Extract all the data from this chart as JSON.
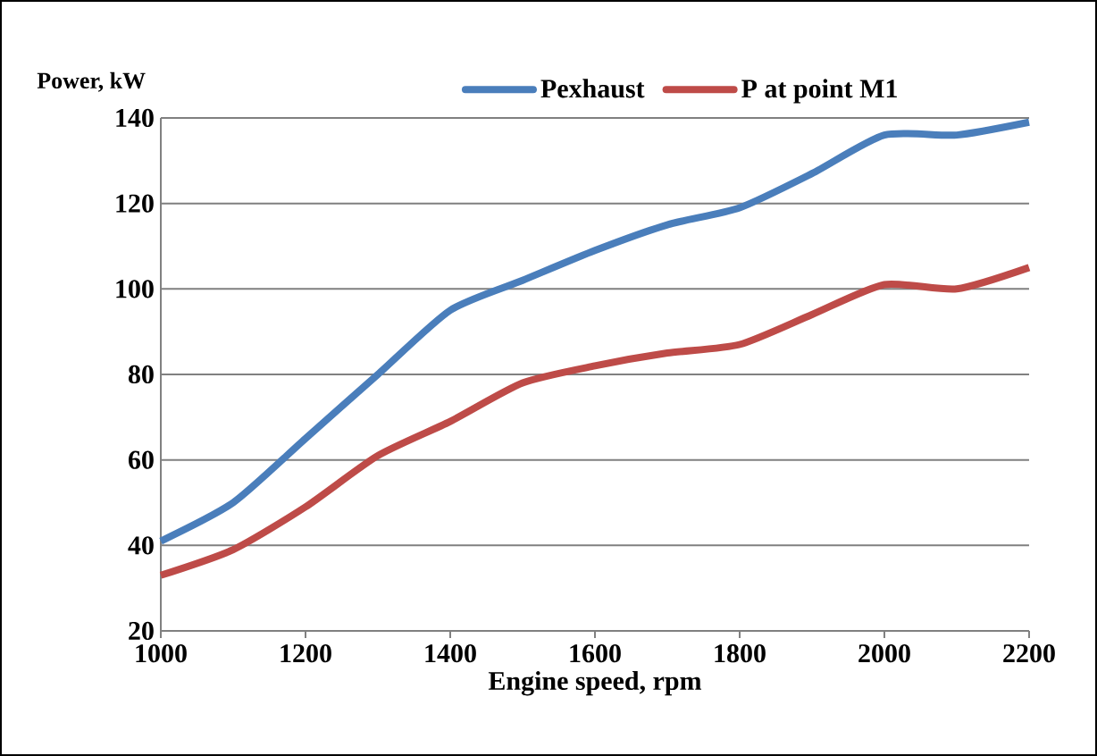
{
  "chart_data": {
    "type": "line",
    "xlabel": "Engine speed, rpm",
    "ylabel": "Power, kW",
    "x": [
      1000,
      1100,
      1200,
      1300,
      1400,
      1500,
      1600,
      1700,
      1800,
      1900,
      2000,
      2100,
      2200
    ],
    "series": [
      {
        "name": "Pexhaust",
        "color": "#4a7ebb",
        "values": [
          41,
          50,
          65,
          80,
          95,
          102,
          109,
          115,
          119,
          127,
          136,
          136,
          139
        ]
      },
      {
        "name": "P at point M1",
        "color": "#be4b48",
        "values": [
          33,
          39,
          49,
          61,
          69,
          78,
          82,
          85,
          87,
          94,
          101,
          100,
          105
        ]
      }
    ],
    "xlim": [
      1000,
      2200
    ],
    "xticks": [
      1000,
      1200,
      1400,
      1600,
      1800,
      2000,
      2200
    ],
    "ylim": [
      20,
      140
    ],
    "yticks": [
      20,
      40,
      60,
      80,
      100,
      120,
      140
    ],
    "grid": "y",
    "legend": "top",
    "marker": "none",
    "line_style": "solid"
  }
}
